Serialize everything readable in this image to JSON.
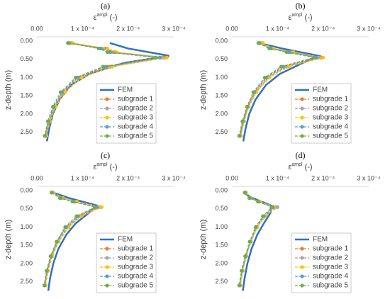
{
  "chart_data": [
    {
      "type": "line",
      "title": "(a)",
      "xlabel": "ε",
      "xlabel_sup": "ampl",
      "xlabel_unit": "(-)",
      "ylabel": "z-depth (m)",
      "xlim": [
        0,
        0.0003
      ],
      "xticks": [
        {
          "value": 0,
          "label": "0.00"
        },
        {
          "value": 0.0001,
          "label": "1 x 10⁻⁴"
        },
        {
          "value": 0.0002,
          "label": "2 x 10⁻⁴"
        },
        {
          "value": 0.0003,
          "label": "3 x 10⁻⁴"
        }
      ],
      "ylim": [
        -0.12,
        2.8
      ],
      "y_inverted": true,
      "yticks": [
        {
          "value": 0,
          "label": "0.00"
        },
        {
          "value": 0.5,
          "label": "0.50"
        },
        {
          "value": 1,
          "label": "1.00"
        },
        {
          "value": 1.5,
          "label": "1.50"
        },
        {
          "value": 2,
          "label": "2.00"
        },
        {
          "value": 2.5,
          "label": "2.50"
        }
      ],
      "grid": false,
      "legend": "lower right",
      "series": [
        {
          "name": "FEM",
          "color": "#2e6fc7",
          "line_style": "solid",
          "markers": false,
          "y": [
            0.05,
            0.2,
            0.4,
            0.6,
            0.9,
            1.2,
            1.6,
            2.0,
            2.4,
            2.75
          ],
          "x": [
            0.00016,
            0.0002,
            0.00029,
            0.00019,
            0.000115,
            7.5e-05,
            5e-05,
            3.5e-05,
            2.7e-05,
            2.2e-05
          ]
        },
        {
          "name": "subgrade 1",
          "color": "#ed7d31",
          "line_style": "dashed",
          "markers": true,
          "y": [
            0.05,
            0.2,
            0.3,
            0.45,
            0.7,
            1.0,
            1.4,
            1.8,
            2.2,
            2.6
          ],
          "x": [
            7.5e-05,
            0.00015,
            0.00017,
            0.00028,
            0.00016,
            9.5e-05,
            6e-05,
            4e-05,
            2.8e-05,
            2e-05
          ]
        },
        {
          "name": "subgrade 2",
          "color": "#a5a5a5",
          "line_style": "dashed",
          "markers": true,
          "y": [
            0.05,
            0.2,
            0.3,
            0.45,
            0.7,
            1.0,
            1.4,
            1.8,
            2.2,
            2.6
          ],
          "x": [
            7.2e-05,
            0.000145,
            0.000165,
            0.000275,
            0.000155,
            9e-05,
            5.7e-05,
            3.8e-05,
            2.7e-05,
            1.9e-05
          ]
        },
        {
          "name": "subgrade 3",
          "color": "#ffc000",
          "line_style": "dashed",
          "markers": true,
          "y": [
            0.05,
            0.2,
            0.3,
            0.45,
            0.7,
            1.0,
            1.4,
            1.8,
            2.2,
            2.6
          ],
          "x": [
            7.8e-05,
            0.000155,
            0.000175,
            0.000285,
            0.000165,
            9.8e-05,
            6.2e-05,
            4.1e-05,
            2.9e-05,
            2.1e-05
          ]
        },
        {
          "name": "subgrade 4",
          "color": "#5b9bd5",
          "line_style": "dashed",
          "markers": true,
          "y": [
            0.05,
            0.2,
            0.3,
            0.45,
            0.7,
            1.0,
            1.4,
            1.8,
            2.2,
            2.6
          ],
          "x": [
            7e-05,
            0.00014,
            0.00016,
            0.00027,
            0.00015,
            8.8e-05,
            5.5e-05,
            3.7e-05,
            2.6e-05,
            1.8e-05
          ]
        },
        {
          "name": "subgrade 5",
          "color": "#70ad47",
          "line_style": "dashed",
          "markers": true,
          "y": [
            0.05,
            0.2,
            0.3,
            0.45,
            0.7,
            1.0,
            1.4,
            1.8,
            2.2,
            2.6
          ],
          "x": [
            6.8e-05,
            0.000135,
            0.000155,
            0.00026,
            0.000145,
            8.5e-05,
            5.2e-05,
            3.5e-05,
            2.4e-05,
            1.7e-05
          ]
        }
      ]
    },
    {
      "type": "line",
      "title": "(b)",
      "xlabel": "ε",
      "xlabel_sup": "ampl",
      "xlabel_unit": "(-)",
      "ylabel": "z-depth (m)",
      "xlim": [
        0,
        0.0003
      ],
      "xticks": [
        {
          "value": 0,
          "label": "0.00"
        },
        {
          "value": 0.0001,
          "label": "1 x 10⁻⁴"
        },
        {
          "value": 0.0002,
          "label": "2 x 10⁻⁴"
        },
        {
          "value": 0.0003,
          "label": "3 x 10⁻⁴"
        }
      ],
      "ylim": [
        -0.12,
        2.8
      ],
      "y_inverted": true,
      "yticks": [
        {
          "value": 0,
          "label": "0.00"
        },
        {
          "value": 0.5,
          "label": "0.50"
        },
        {
          "value": 1,
          "label": "1.00"
        },
        {
          "value": 1.5,
          "label": "1.50"
        },
        {
          "value": 2,
          "label": "2.00"
        },
        {
          "value": 2.5,
          "label": "2.50"
        }
      ],
      "grid": false,
      "legend": "lower right",
      "series": [
        {
          "name": "FEM",
          "color": "#2e6fc7",
          "line_style": "solid",
          "markers": false,
          "y": [
            0.05,
            0.2,
            0.4,
            0.6,
            0.9,
            1.2,
            1.6,
            2.0,
            2.4,
            2.75
          ],
          "x": [
            6e-05,
            0.00011,
            0.00019,
            0.000155,
            0.000105,
            7.5e-05,
            5.2e-05,
            3.8e-05,
            3e-05,
            2.5e-05
          ]
        },
        {
          "name": "subgrade 1",
          "color": "#ed7d31",
          "line_style": "dashed",
          "markers": true,
          "y": [
            0.05,
            0.2,
            0.3,
            0.45,
            0.7,
            1.0,
            1.4,
            1.8,
            2.2,
            2.6
          ],
          "x": [
            6.5e-05,
            9e-05,
            0.00013,
            0.000195,
            0.00012,
            8e-05,
            5.2e-05,
            3.6e-05,
            2.6e-05,
            1.9e-05
          ]
        },
        {
          "name": "subgrade 2",
          "color": "#a5a5a5",
          "line_style": "dashed",
          "markers": true,
          "y": [
            0.05,
            0.2,
            0.3,
            0.45,
            0.7,
            1.0,
            1.4,
            1.8,
            2.2,
            2.6
          ],
          "x": [
            6.2e-05,
            8.8e-05,
            0.000128,
            0.00019,
            0.000115,
            7.7e-05,
            5e-05,
            3.5e-05,
            2.5e-05,
            1.8e-05
          ]
        },
        {
          "name": "subgrade 3",
          "color": "#ffc000",
          "line_style": "dashed",
          "markers": true,
          "y": [
            0.05,
            0.2,
            0.3,
            0.45,
            0.7,
            1.0,
            1.4,
            1.8,
            2.2,
            2.6
          ],
          "x": [
            6.8e-05,
            9.2e-05,
            0.000135,
            0.0002,
            0.000125,
            8.2e-05,
            5.4e-05,
            3.7e-05,
            2.7e-05,
            2e-05
          ]
        },
        {
          "name": "subgrade 4",
          "color": "#5b9bd5",
          "line_style": "dashed",
          "markers": true,
          "y": [
            0.05,
            0.2,
            0.3,
            0.45,
            0.7,
            1.0,
            1.4,
            1.8,
            2.2,
            2.6
          ],
          "x": [
            6e-05,
            8.5e-05,
            0.000125,
            0.000185,
            0.000112,
            7.5e-05,
            4.9e-05,
            3.4e-05,
            2.4e-05,
            1.7e-05
          ]
        },
        {
          "name": "subgrade 5",
          "color": "#70ad47",
          "line_style": "dashed",
          "markers": true,
          "y": [
            0.05,
            0.2,
            0.3,
            0.45,
            0.7,
            1.0,
            1.4,
            1.8,
            2.2,
            2.6
          ],
          "x": [
            5.8e-05,
            8.2e-05,
            0.00012,
            0.00018,
            0.000108,
            7.2e-05,
            4.7e-05,
            3.3e-05,
            2.3e-05,
            1.6e-05
          ]
        }
      ]
    },
    {
      "type": "line",
      "title": "(c)",
      "xlabel": "ε",
      "xlabel_sup": "ampl",
      "xlabel_unit": "(-)",
      "ylabel": "z-depth (m)",
      "xlim": [
        0,
        0.0003
      ],
      "xticks": [
        {
          "value": 0,
          "label": "0.00"
        },
        {
          "value": 0.0001,
          "label": "1 x 10⁻⁴"
        },
        {
          "value": 0.0002,
          "label": "2 x 10⁻⁴"
        },
        {
          "value": 0.0003,
          "label": "3 x 10⁻⁴"
        }
      ],
      "ylim": [
        -0.12,
        2.8
      ],
      "y_inverted": true,
      "yticks": [
        {
          "value": 0,
          "label": "0.00"
        },
        {
          "value": 0.5,
          "label": "0.50"
        },
        {
          "value": 1,
          "label": "1.00"
        },
        {
          "value": 1.5,
          "label": "1.50"
        },
        {
          "value": 2,
          "label": "2.00"
        },
        {
          "value": 2.5,
          "label": "2.50"
        }
      ],
      "grid": false,
      "legend": "lower right",
      "series": [
        {
          "name": "FEM",
          "color": "#2e6fc7",
          "line_style": "solid",
          "markers": false,
          "y": [
            0.05,
            0.2,
            0.4,
            0.6,
            0.9,
            1.2,
            1.6,
            2.0,
            2.4,
            2.75
          ],
          "x": [
            3.5e-05,
            7e-05,
            0.00013,
            0.000115,
            8.5e-05,
            6.5e-05,
            4.7e-05,
            3.6e-05,
            2.9e-05,
            2.5e-05
          ]
        },
        {
          "name": "subgrade 1",
          "color": "#ed7d31",
          "line_style": "dashed",
          "markers": true,
          "y": [
            0.05,
            0.2,
            0.3,
            0.45,
            0.7,
            1.0,
            1.4,
            1.8,
            2.2,
            2.6
          ],
          "x": [
            3.5e-05,
            5.5e-05,
            8.5e-05,
            0.00014,
            9.5e-05,
            6.8e-05,
            4.7e-05,
            3.3e-05,
            2.4e-05,
            1.8e-05
          ]
        },
        {
          "name": "subgrade 2",
          "color": "#a5a5a5",
          "line_style": "dashed",
          "markers": true,
          "y": [
            0.05,
            0.2,
            0.3,
            0.45,
            0.7,
            1.0,
            1.4,
            1.8,
            2.2,
            2.6
          ],
          "x": [
            3.4e-05,
            5.3e-05,
            8.2e-05,
            0.000135,
            9.2e-05,
            6.6e-05,
            4.5e-05,
            3.2e-05,
            2.3e-05,
            1.7e-05
          ]
        },
        {
          "name": "subgrade 3",
          "color": "#ffc000",
          "line_style": "dashed",
          "markers": true,
          "y": [
            0.05,
            0.2,
            0.3,
            0.45,
            0.7,
            1.0,
            1.4,
            1.8,
            2.2,
            2.6
          ],
          "x": [
            3.6e-05,
            5.7e-05,
            8.8e-05,
            0.000142,
            9.8e-05,
            7e-05,
            4.8e-05,
            3.4e-05,
            2.5e-05,
            1.9e-05
          ]
        },
        {
          "name": "subgrade 4",
          "color": "#5b9bd5",
          "line_style": "dashed",
          "markers": true,
          "y": [
            0.05,
            0.2,
            0.3,
            0.45,
            0.7,
            1.0,
            1.4,
            1.8,
            2.2,
            2.6
          ],
          "x": [
            3.3e-05,
            5.2e-05,
            8e-05,
            0.000132,
            9e-05,
            6.4e-05,
            4.4e-05,
            3.1e-05,
            2.2e-05,
            1.7e-05
          ]
        },
        {
          "name": "subgrade 5",
          "color": "#70ad47",
          "line_style": "dashed",
          "markers": true,
          "y": [
            0.05,
            0.2,
            0.3,
            0.45,
            0.7,
            1.0,
            1.4,
            1.8,
            2.2,
            2.6
          ],
          "x": [
            3.2e-05,
            5e-05,
            7.8e-05,
            0.000128,
            8.7e-05,
            6.2e-05,
            4.3e-05,
            3e-05,
            2.1e-05,
            1.6e-05
          ]
        }
      ]
    },
    {
      "type": "line",
      "title": "(d)",
      "xlabel": "ε",
      "xlabel_sup": "ampl",
      "xlabel_unit": "(-)",
      "ylabel": "z-depth (m)",
      "xlim": [
        0,
        0.0003
      ],
      "xticks": [
        {
          "value": 0,
          "label": "0.00"
        },
        {
          "value": 0.0001,
          "label": "1 x 10⁻⁴"
        },
        {
          "value": 0.0002,
          "label": "2 x 10⁻⁴"
        },
        {
          "value": 0.0003,
          "label": "3 x 10⁻⁴"
        }
      ],
      "ylim": [
        -0.12,
        2.8
      ],
      "y_inverted": true,
      "yticks": [
        {
          "value": 0,
          "label": "0.00"
        },
        {
          "value": 0.5,
          "label": "0.50"
        },
        {
          "value": 1,
          "label": "1.00"
        },
        {
          "value": 1.5,
          "label": "1.50"
        },
        {
          "value": 2,
          "label": "2.00"
        },
        {
          "value": 2.5,
          "label": "2.50"
        }
      ],
      "grid": false,
      "legend": "lower right",
      "series": [
        {
          "name": "FEM",
          "color": "#2e6fc7",
          "line_style": "solid",
          "markers": false,
          "y": [
            0.05,
            0.2,
            0.4,
            0.6,
            0.9,
            1.2,
            1.6,
            2.0,
            2.4,
            2.75
          ],
          "x": [
            2.5e-05,
            4.5e-05,
            8.5e-05,
            8.5e-05,
            7e-05,
            5.6e-05,
            4.3e-05,
            3.4e-05,
            2.8e-05,
            2.4e-05
          ]
        },
        {
          "name": "subgrade 1",
          "color": "#ed7d31",
          "line_style": "dashed",
          "markers": true,
          "y": [
            0.05,
            0.2,
            0.3,
            0.45,
            0.7,
            1.0,
            1.4,
            1.8,
            2.2,
            2.6
          ],
          "x": [
            3e-05,
            4e-05,
            6e-05,
            9.5e-05,
            7.2e-05,
            5.5e-05,
            4.1e-05,
            3.1e-05,
            2.3e-05,
            1.8e-05
          ]
        },
        {
          "name": "subgrade 2",
          "color": "#a5a5a5",
          "line_style": "dashed",
          "markers": true,
          "y": [
            0.05,
            0.2,
            0.3,
            0.45,
            0.7,
            1.0,
            1.4,
            1.8,
            2.2,
            2.6
          ],
          "x": [
            3e-05,
            4e-05,
            6e-05,
            0.0001,
            7.2e-05,
            5.5e-05,
            4.1e-05,
            3.1e-05,
            2.3e-05,
            1.8e-05
          ]
        },
        {
          "name": "subgrade 3",
          "color": "#ffc000",
          "line_style": "dashed",
          "markers": true,
          "y": [
            0.05,
            0.2,
            0.3,
            0.45,
            0.7,
            1.0,
            1.4,
            1.8,
            2.2,
            2.6
          ],
          "x": [
            3.1e-05,
            4.1e-05,
            6.2e-05,
            9.3e-05,
            7.4e-05,
            5.6e-05,
            4.2e-05,
            3.2e-05,
            2.4e-05,
            1.9e-05
          ]
        },
        {
          "name": "subgrade 4",
          "color": "#5b9bd5",
          "line_style": "dashed",
          "markers": true,
          "y": [
            0.05,
            0.2,
            0.3,
            0.45,
            0.7,
            1.0,
            1.4,
            1.8,
            2.2,
            2.6
          ],
          "x": [
            2.9e-05,
            3.9e-05,
            5.8e-05,
            9e-05,
            7e-05,
            5.3e-05,
            4e-05,
            3e-05,
            2.2e-05,
            1.7e-05
          ]
        },
        {
          "name": "subgrade 5",
          "color": "#70ad47",
          "line_style": "dashed",
          "markers": true,
          "y": [
            0.05,
            0.2,
            0.3,
            0.45,
            0.7,
            1.0,
            1.4,
            1.8,
            2.2,
            2.6
          ],
          "x": [
            2.8e-05,
            3.8e-05,
            5.7e-05,
            8.8e-05,
            6.8e-05,
            5.2e-05,
            3.9e-05,
            2.9e-05,
            2.1e-05,
            1.6e-05
          ]
        }
      ]
    }
  ]
}
